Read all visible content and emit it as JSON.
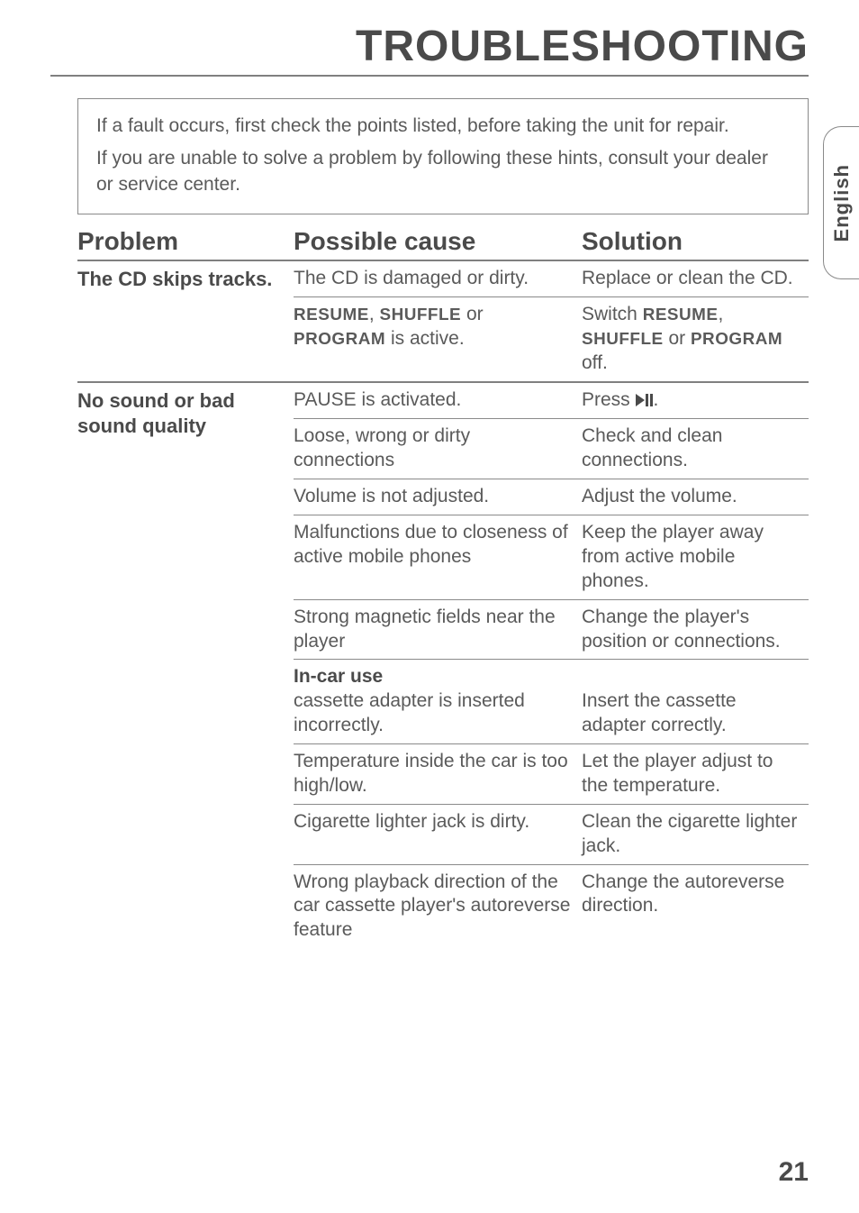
{
  "title": "TROUBLESHOOTING",
  "side_tab": "English",
  "page_number": "21",
  "intro": {
    "line1": "If a fault occurs, first check the points listed, before taking the unit for repair.",
    "line2": "If you are unable to solve a problem by following these hints, consult your dealer or service center."
  },
  "headers": {
    "problem": "Problem",
    "cause": "Possible cause",
    "solution": "Solution"
  },
  "groups": [
    {
      "problem": "The CD skips tracks.",
      "rows": [
        {
          "cause_html": "The CD is damaged or dirty.",
          "solution_html": "Replace or clean the CD."
        },
        {
          "cause_html": "<span class='sc'>RESUME</span>, <span class='sc'>SHUFFLE</span> or <span class='sc'>PROGRAM</span> is active.",
          "solution_html": "Switch <span class='sc'>RESUME</span>, <span class='sc'>SHUFFLE</span> or <span class='sc'>PROGRAM</span> off."
        }
      ]
    },
    {
      "problem": "No sound or bad sound quality",
      "rows": [
        {
          "cause_html": "PAUSE is activated.",
          "solution_html": "Press <span class='play-pause-icon'><svg width='20' height='14' viewBox='0 0 20 14'><polygon points='0,0 10,7 0,14' fill='#4a4a4a'/><rect x='11' y='0' width='3' height='14' fill='#4a4a4a'/><rect x='16' y='0' width='3' height='14' fill='#4a4a4a'/></svg></span>."
        },
        {
          "cause_html": "Loose, wrong or dirty connections",
          "solution_html": "Check and clean connections."
        },
        {
          "cause_html": "Volume is not adjusted.",
          "solution_html": "Adjust the volume."
        },
        {
          "cause_html": "Malfunctions due to closeness of active mobile phones",
          "solution_html": "Keep the player away from active mobile phones."
        },
        {
          "cause_html": "Strong magnetic fields near the player",
          "solution_html": "Change the player's position or connections."
        },
        {
          "cause_html": "<span class='bold-inline'>In-car use</span><br>cassette adapter is inserted incorrectly.",
          "solution_html": "<br>Insert the cassette adapter correctly."
        },
        {
          "cause_html": "Temperature inside the car is too high/low.",
          "solution_html": "Let the player adjust to the temperature."
        },
        {
          "cause_html": "Cigarette lighter jack is dirty.",
          "solution_html": "Clean the cigarette lighter jack."
        },
        {
          "cause_html": "Wrong playback direction of the car cassette player's autoreverse feature",
          "solution_html": "Change the autoreverse direction."
        }
      ]
    }
  ]
}
